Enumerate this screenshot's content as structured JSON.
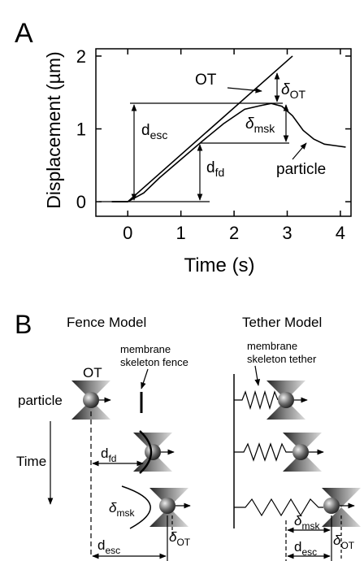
{
  "chart_data": {
    "type": "line",
    "panel_label": "A",
    "xlabel": "Time (s)",
    "ylabel": "Displacement (µm)",
    "xlim": [
      -0.6,
      4.2
    ],
    "ylim": [
      -0.2,
      2.1
    ],
    "xticks": [
      0,
      1,
      2,
      3,
      4
    ],
    "yticks": [
      0,
      1,
      2
    ],
    "grid": false,
    "series": [
      {
        "name": "OT",
        "color": "#000000",
        "x": [
          -0.3,
          0,
          3.1
        ],
        "values": [
          0,
          0,
          2
        ]
      },
      {
        "name": "particle",
        "color": "#000000",
        "x": [
          -0.3,
          0,
          0.3,
          0.6,
          1.0,
          1.4,
          1.8,
          2.2,
          2.5,
          2.7,
          2.9,
          3.1,
          3.3,
          3.5,
          3.7,
          3.9,
          4.1
        ],
        "values": [
          0,
          0,
          0.12,
          0.33,
          0.58,
          0.83,
          1.07,
          1.27,
          1.32,
          1.35,
          1.31,
          1.18,
          0.98,
          0.86,
          0.79,
          0.77,
          0.75
        ]
      }
    ],
    "annotations": {
      "d_esc": {
        "text": "d",
        "sub": "esc"
      },
      "d_fd": {
        "text": "d",
        "sub": "fd"
      },
      "delta_ot": {
        "text": "δ",
        "sub": "OT"
      },
      "delta_msk": {
        "text": "δ",
        "sub": "msk"
      }
    }
  },
  "diagram": {
    "panel_label": "B",
    "time_label": "Time",
    "fence_model": {
      "title": "Fence Model",
      "ot_label": "OT",
      "particle_label": "particle",
      "fence_label": [
        "membrane",
        "skeleton fence"
      ],
      "d_fd": {
        "text": "d",
        "sub": "fd"
      },
      "delta_msk": {
        "text": "δ",
        "sub": "msk"
      },
      "delta_ot": {
        "text": "δ",
        "sub": "OT"
      },
      "d_esc": {
        "text": "d",
        "sub": "esc"
      }
    },
    "tether_model": {
      "title": "Tether Model",
      "tether_label": [
        "membrane",
        "skeleton tether"
      ],
      "delta_msk": {
        "text": "δ",
        "sub": "msk"
      },
      "d_esc": {
        "text": "d",
        "sub": "esc"
      },
      "delta_ot": {
        "text": "δ",
        "sub": "OT"
      }
    }
  }
}
